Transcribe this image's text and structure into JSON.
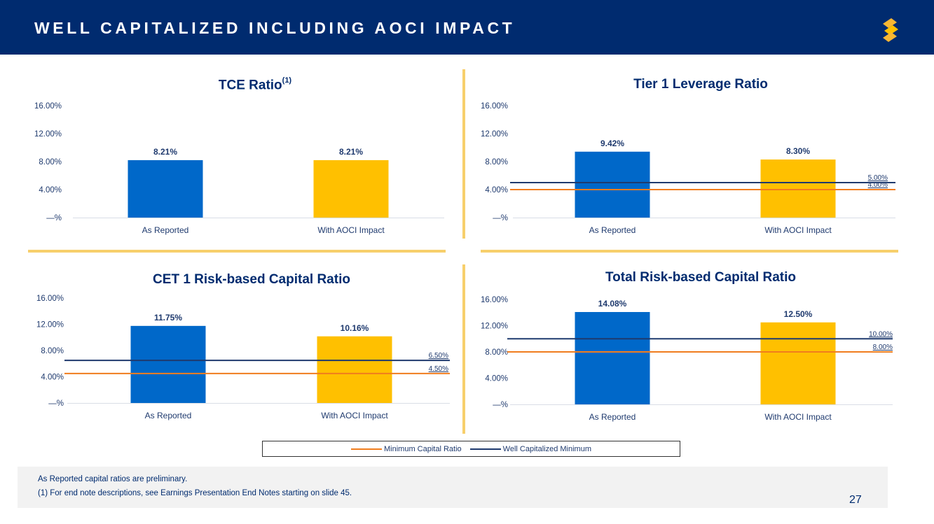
{
  "header": {
    "title": "WELL CAPITALIZED INCLUDING AOCI IMPACT",
    "logo_icon": "s-logo-icon"
  },
  "colors": {
    "header_bg": "#002b6f",
    "as_reported": "#0068c9",
    "with_aoci": "#ffc000",
    "minimum_line": "#f07d1e",
    "well_capitalized_line": "#1f3a6e",
    "divider": "#f7cf6c"
  },
  "chart_data": [
    {
      "type": "bar",
      "title": "TCE Ratio",
      "title_superscript": "(1)",
      "categories": [
        "As Reported",
        "With AOCI Impact"
      ],
      "values": [
        8.21,
        8.21
      ],
      "value_labels": [
        "8.21%",
        "8.21%"
      ],
      "ylim": [
        0,
        16
      ],
      "yticks": [
        0,
        4,
        8,
        12,
        16
      ],
      "ytick_labels": [
        "—%",
        "4.00%",
        "8.00%",
        "12.00%",
        "16.00%"
      ],
      "reference_lines": []
    },
    {
      "type": "bar",
      "title": "Tier 1 Leverage Ratio",
      "categories": [
        "As Reported",
        "With AOCI Impact"
      ],
      "values": [
        9.42,
        8.3
      ],
      "value_labels": [
        "9.42%",
        "8.30%"
      ],
      "ylim": [
        0,
        16
      ],
      "yticks": [
        0,
        4,
        8,
        12,
        16
      ],
      "ytick_labels": [
        "—%",
        "4.00%",
        "8.00%",
        "12.00%",
        "16.00%"
      ],
      "reference_lines": [
        {
          "name": "Well Capitalized Minimum",
          "value": 5.0,
          "label": "5.00%"
        },
        {
          "name": "Minimum Capital Ratio",
          "value": 4.0,
          "label": "4.00%"
        }
      ]
    },
    {
      "type": "bar",
      "title": "CET 1 Risk-based Capital Ratio",
      "categories": [
        "As Reported",
        "With AOCI Impact"
      ],
      "values": [
        11.75,
        10.16
      ],
      "value_labels": [
        "11.75%",
        "10.16%"
      ],
      "ylim": [
        0,
        16
      ],
      "yticks": [
        0,
        4,
        8,
        12,
        16
      ],
      "ytick_labels": [
        "—%",
        "4.00%",
        "8.00%",
        "12.00%",
        "16.00%"
      ],
      "reference_lines": [
        {
          "name": "Well Capitalized Minimum",
          "value": 6.5,
          "label": "6.50%"
        },
        {
          "name": "Minimum Capital Ratio",
          "value": 4.5,
          "label": "4.50%"
        }
      ]
    },
    {
      "type": "bar",
      "title": "Total Risk-based Capital Ratio",
      "categories": [
        "As Reported",
        "With AOCI Impact"
      ],
      "values": [
        14.08,
        12.5
      ],
      "value_labels": [
        "14.08%",
        "12.50%"
      ],
      "ylim": [
        0,
        16
      ],
      "yticks": [
        0,
        4,
        8,
        12,
        16
      ],
      "ytick_labels": [
        "—%",
        "4.00%",
        "8.00%",
        "12.00%",
        "16.00%"
      ],
      "reference_lines": [
        {
          "name": "Well Capitalized Minimum",
          "value": 10.0,
          "label": "10.00%"
        },
        {
          "name": "Minimum Capital Ratio",
          "value": 8.0,
          "label": "8.00%"
        }
      ]
    }
  ],
  "legend": {
    "minimum": "Minimum Capital Ratio",
    "well_capitalized": "Well Capitalized Minimum"
  },
  "footer": {
    "note1": "As Reported capital ratios are preliminary.",
    "note2": "(1)   For end note descriptions, see Earnings Presentation End Notes starting on slide 45."
  },
  "page_number": "27"
}
